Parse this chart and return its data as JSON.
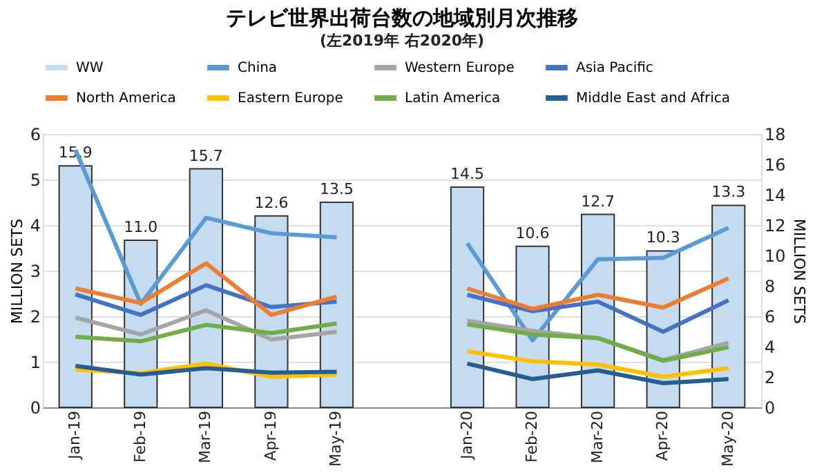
{
  "chart_data": {
    "type": "line",
    "title": "テレビ世界出荷台数の地域別月次推移",
    "subtitle": "(左2019年 右2020年)",
    "ylabel": "MILLION SETS",
    "y2label": "MILLION SETS",
    "categories": [
      "Jan-19",
      "Feb-19",
      "Mar-19",
      "Apr-19",
      "May-19",
      null,
      "Jan-20",
      "Feb-20",
      "Mar-20",
      "Apr-20",
      "May-20"
    ],
    "ylim": [
      0,
      6
    ],
    "yticks": [
      0,
      1,
      2,
      3,
      4,
      5,
      6
    ],
    "y2lim": [
      0,
      18
    ],
    "y2ticks": [
      0,
      2,
      4,
      6,
      8,
      10,
      12,
      14,
      16,
      18
    ],
    "grid": "y",
    "legend": "top",
    "series": [
      {
        "name": "WW",
        "type": "bar",
        "axis": "y2",
        "color": "#c5dcf0",
        "values": [
          15.9,
          11.0,
          15.7,
          12.6,
          13.5,
          null,
          14.5,
          10.6,
          12.7,
          10.3,
          13.3
        ],
        "value_labels": [
          "15.9",
          "11.0",
          "15.7",
          "12.6",
          "13.5",
          null,
          "14.5",
          "10.6",
          "12.7",
          "10.3",
          "13.3"
        ]
      },
      {
        "name": "China",
        "color": "#5b9bd5",
        "values": [
          5.65,
          2.27,
          4.16,
          3.82,
          3.73,
          null,
          3.6,
          1.47,
          3.25,
          3.28,
          3.94
        ]
      },
      {
        "name": "Western Europe",
        "color": "#a5a5a5",
        "values": [
          1.97,
          1.6,
          2.13,
          1.49,
          1.66,
          null,
          1.9,
          1.68,
          1.52,
          1.04,
          1.42
        ]
      },
      {
        "name": "Asia Pacific",
        "color": "#4472c4",
        "values": [
          2.48,
          2.03,
          2.68,
          2.2,
          2.32,
          null,
          2.47,
          2.11,
          2.32,
          1.66,
          2.35
        ]
      },
      {
        "name": "North America",
        "color": "#ed7d31",
        "values": [
          2.61,
          2.29,
          3.16,
          2.03,
          2.43,
          null,
          2.61,
          2.16,
          2.47,
          2.19,
          2.83
        ]
      },
      {
        "name": "Eastern Europe",
        "color": "#ffc000",
        "values": [
          0.83,
          0.75,
          0.96,
          0.67,
          0.72,
          null,
          1.23,
          1.01,
          0.94,
          0.67,
          0.86
        ]
      },
      {
        "name": "Latin America",
        "color": "#70ad47",
        "values": [
          1.55,
          1.45,
          1.81,
          1.63,
          1.84,
          null,
          1.82,
          1.6,
          1.52,
          1.02,
          1.32
        ]
      },
      {
        "name": "Middle East and Africa",
        "color": "#255e91",
        "values": [
          0.91,
          0.72,
          0.86,
          0.76,
          0.78,
          null,
          0.96,
          0.62,
          0.81,
          0.53,
          0.62
        ]
      }
    ]
  }
}
